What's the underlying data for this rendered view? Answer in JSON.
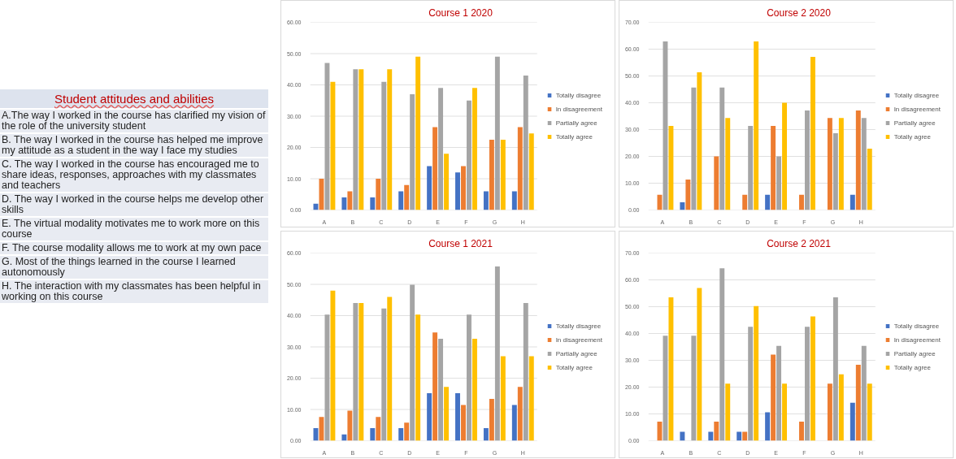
{
  "chart_data": [
    {
      "type": "other",
      "title": "Student attitudes and abilities",
      "annotations": [
        "A.The way I worked  in the course has clarified my vision of the role of the university student",
        "B. The way I worked in the course has helped me improve my attitude as a student in the way I face my studies",
        "C. The way I worked in the course has encouraged me to share ideas, responses, approaches with my classmates and teachers",
        "D. The way I worked in the course helps me develop other skills",
        "E. The virtual modality motivates me to work more on this course",
        "F. The course modality allows me to work at my own pace",
        "G. Most of the things learned in the course I learned autonomously",
        "H. The interaction with my classmates has been helpful in working on this course"
      ]
    },
    {
      "type": "bar",
      "title": "Course 1 2020",
      "categories": [
        "A",
        "B",
        "C",
        "D",
        "E",
        "F",
        "G",
        "H"
      ],
      "ylim": [
        0,
        60
      ],
      "yticks": [
        {
          "value": 0,
          "label": "0.00"
        },
        {
          "value": 10,
          "label": "10.00"
        },
        {
          "value": 20,
          "label": "20.00"
        },
        {
          "value": 30,
          "label": "30.00"
        },
        {
          "value": 40,
          "label": "40.00"
        },
        {
          "value": 50,
          "label": "50.00"
        },
        {
          "value": 60,
          "label": "60.00"
        }
      ],
      "grid": "y",
      "legend": "right",
      "series": [
        {
          "name": "Totally disagree",
          "color": "#4472c4",
          "values": [
            2,
            4,
            4,
            6,
            14,
            12,
            6,
            6
          ]
        },
        {
          "name": "In disagreement",
          "color": "#ed7d31",
          "values": [
            10,
            6,
            10,
            8,
            26.5,
            14,
            22.5,
            26.5
          ]
        },
        {
          "name": "Partially agree",
          "color": "#a5a5a5",
          "values": [
            47,
            45,
            41,
            37,
            39,
            35,
            49,
            43
          ]
        },
        {
          "name": "Totally agree",
          "color": "#ffc000",
          "values": [
            41,
            45,
            45,
            49,
            18,
            39,
            22.5,
            24.5
          ]
        }
      ]
    },
    {
      "type": "bar",
      "title": "Course 2 2020",
      "categories": [
        "A",
        "B",
        "C",
        "D",
        "E",
        "F",
        "G",
        "H"
      ],
      "ylim": [
        0,
        70
      ],
      "yticks": [
        {
          "value": 0,
          "label": "0.00"
        },
        {
          "value": 10,
          "label": "10.00"
        },
        {
          "value": 20,
          "label": "20.00"
        },
        {
          "value": 30,
          "label": "30.00"
        },
        {
          "value": 40,
          "label": "40.00"
        },
        {
          "value": 50,
          "label": "50.00"
        },
        {
          "value": 60,
          "label": "60.00"
        },
        {
          "value": 70,
          "label": "70.00"
        }
      ],
      "grid": "y",
      "legend": "right",
      "series": [
        {
          "name": "Totally disagree",
          "color": "#4472c4",
          "values": [
            0,
            2.9,
            0,
            0,
            5.7,
            0,
            0,
            5.7
          ]
        },
        {
          "name": "In disagreement",
          "color": "#ed7d31",
          "values": [
            5.7,
            11.4,
            20,
            5.7,
            31.4,
            5.7,
            34.3,
            37.1
          ]
        },
        {
          "name": "Partially agree",
          "color": "#a5a5a5",
          "values": [
            62.9,
            45.7,
            45.7,
            31.4,
            20,
            37.1,
            28.6,
            34.3
          ]
        },
        {
          "name": "Totally agree",
          "color": "#ffc000",
          "values": [
            31.4,
            51.4,
            34.3,
            62.9,
            40,
            57.1,
            34.3,
            22.9
          ]
        }
      ]
    },
    {
      "type": "bar",
      "title": "Course 1 2021",
      "categories": [
        "A",
        "B",
        "C",
        "D",
        "E",
        "F",
        "G",
        "H"
      ],
      "ylim": [
        0,
        60
      ],
      "yticks": [
        {
          "value": 0,
          "label": "0.00"
        },
        {
          "value": 10,
          "label": "10.00"
        },
        {
          "value": 20,
          "label": "20.00"
        },
        {
          "value": 30,
          "label": "30.00"
        },
        {
          "value": 40,
          "label": "40.00"
        },
        {
          "value": 50,
          "label": "50.00"
        },
        {
          "value": 60,
          "label": "60.00"
        }
      ],
      "grid": "y",
      "legend": "right",
      "series": [
        {
          "name": "Totally disagree",
          "color": "#4472c4",
          "values": [
            4,
            2,
            4,
            4,
            15.2,
            15.2,
            4,
            11.4
          ]
        },
        {
          "name": "In disagreement",
          "color": "#ed7d31",
          "values": [
            7.6,
            9.6,
            7.6,
            5.8,
            34.6,
            11.4,
            13.4,
            17.2
          ]
        },
        {
          "name": "Partially agree",
          "color": "#a5a5a5",
          "values": [
            40.3,
            44,
            42.3,
            49.9,
            32.6,
            40.3,
            55.7,
            44
          ]
        },
        {
          "name": "Totally agree",
          "color": "#ffc000",
          "values": [
            48,
            44,
            46,
            40.3,
            17.2,
            32.6,
            27,
            27
          ]
        }
      ]
    },
    {
      "type": "bar",
      "title": "Course 2 2021",
      "categories": [
        "A",
        "B",
        "C",
        "D",
        "E",
        "F",
        "G",
        "H"
      ],
      "ylim": [
        0,
        70
      ],
      "yticks": [
        {
          "value": 0,
          "label": "0.00"
        },
        {
          "value": 10,
          "label": "10.00"
        },
        {
          "value": 20,
          "label": "20.00"
        },
        {
          "value": 30,
          "label": "30.00"
        },
        {
          "value": 40,
          "label": "40.00"
        },
        {
          "value": 50,
          "label": "50.00"
        },
        {
          "value": 60,
          "label": "60.00"
        },
        {
          "value": 70,
          "label": "70.00"
        }
      ],
      "grid": "y",
      "legend": "right",
      "series": [
        {
          "name": "Totally disagree",
          "color": "#4472c4",
          "values": [
            0,
            3.3,
            3.3,
            3.3,
            10.6,
            0,
            0,
            14.2
          ]
        },
        {
          "name": "In disagreement",
          "color": "#ed7d31",
          "values": [
            7.1,
            0,
            7.1,
            3.3,
            32.1,
            7.1,
            21.3,
            28.3
          ]
        },
        {
          "name": "Partially agree",
          "color": "#a5a5a5",
          "values": [
            39.2,
            39.2,
            64.3,
            42.5,
            35.4,
            42.5,
            53.5,
            35.4
          ]
        },
        {
          "name": "Totally agree",
          "color": "#ffc000",
          "values": [
            53.5,
            57,
            21.3,
            50.2,
            21.3,
            46.4,
            24.8,
            21.3
          ]
        }
      ]
    }
  ]
}
